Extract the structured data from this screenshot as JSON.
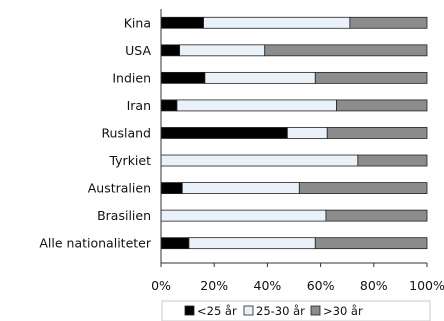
{
  "chart_data": {
    "type": "bar",
    "orientation": "horizontal",
    "stacked": true,
    "percent": true,
    "categories": [
      "Kina",
      "USA",
      "Indien",
      "Iran",
      "Rusland",
      "Tyrkiet",
      "Australien",
      "Brasilien",
      "Alle nationaliteter"
    ],
    "series": [
      {
        "name": "<25 år",
        "values": [
          16,
          7,
          16.5,
          6,
          47.5,
          0,
          8,
          0,
          10.5
        ],
        "color": "#000000"
      },
      {
        "name": "25-30 år",
        "values": [
          55,
          32,
          41.5,
          60,
          15,
          74,
          44,
          62,
          47.5
        ],
        "color": "#eaf1f8"
      },
      {
        "name": ">30 år",
        "values": [
          29,
          61,
          42,
          34,
          37.5,
          26,
          48,
          38,
          42
        ],
        "color": "#8c8c8c"
      }
    ],
    "xlim": [
      0,
      100
    ],
    "xticks": [
      "0%",
      "20%",
      "40%",
      "60%",
      "80%",
      "100%"
    ],
    "grid": false,
    "legend": "bottom"
  }
}
